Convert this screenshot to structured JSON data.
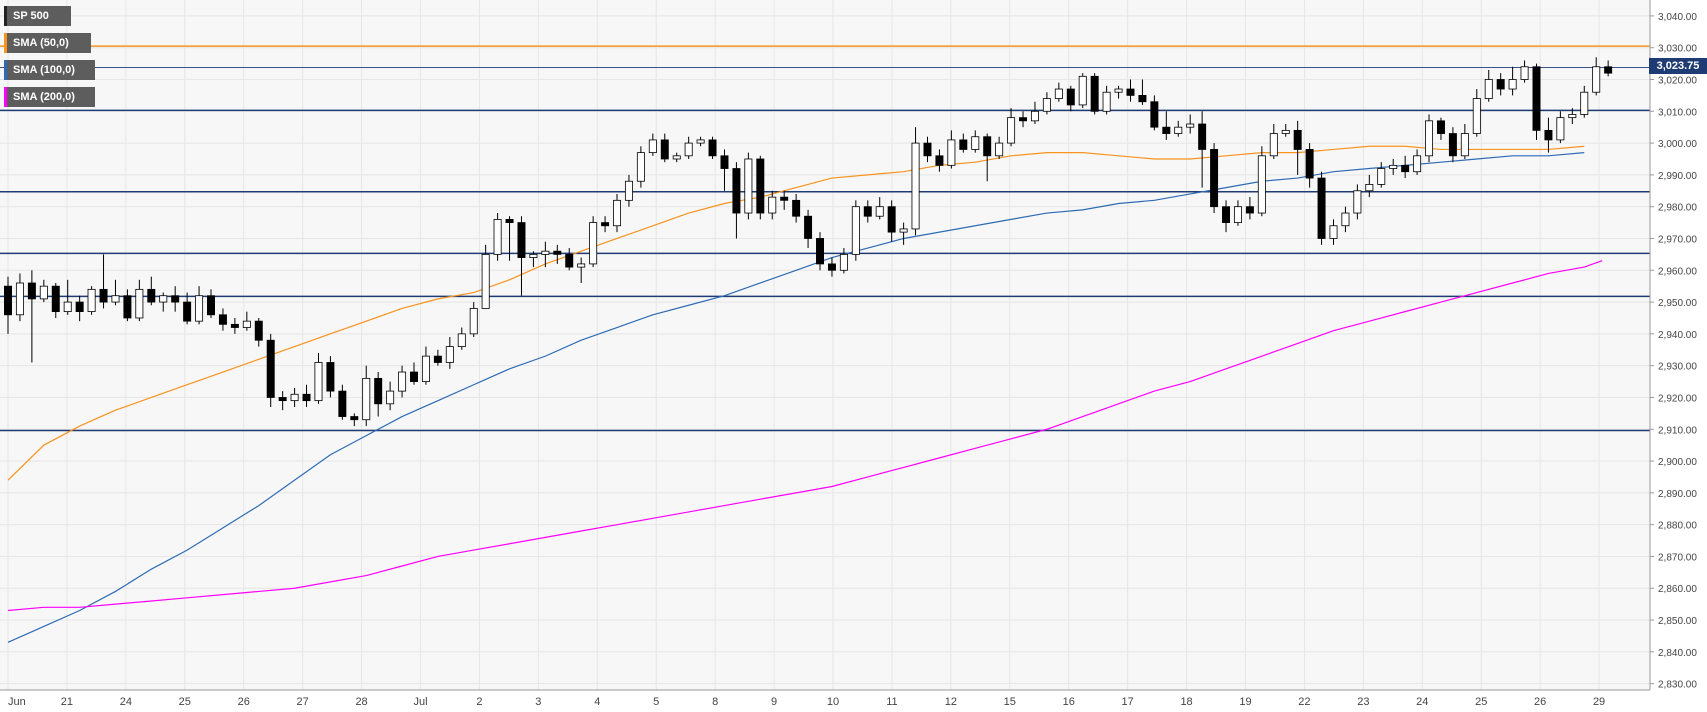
{
  "legend": {
    "symbol": "SP 500",
    "sma50": "SMA (50,0)",
    "sma100": "SMA (100,0)",
    "sma200": "SMA (200,0)"
  },
  "colors": {
    "background": "#f7f7f7",
    "grid": "#e6e6e6",
    "sma50": "#f7931e",
    "sma100": "#2e6bb5",
    "sma200": "#ff00ff",
    "levels": "#1f3b73",
    "orange_level": "#f7931e",
    "candle_up": "#ffffff",
    "candle_down": "#000000"
  },
  "price_label": "3,023.75",
  "chart_data": {
    "type": "line",
    "title": "",
    "xlabel": "",
    "ylabel": "",
    "ylim": [
      2828,
      3045
    ],
    "y_ticks": [
      "3,040.00",
      "3,030.00",
      "3,020.00",
      "3,010.00",
      "3,000.00",
      "2,990.00",
      "2,980.00",
      "2,970.00",
      "2,960.00",
      "2,950.00",
      "2,940.00",
      "2,930.00",
      "2,920.00",
      "2,910.00",
      "2,900.00",
      "2,890.00",
      "2,880.00",
      "2,870.00",
      "2,860.00",
      "2,850.00",
      "2,840.00",
      "2,830.00"
    ],
    "y_tick_values": [
      3040,
      3030,
      3020,
      3010,
      3000,
      2990,
      2980,
      2970,
      2960,
      2950,
      2940,
      2930,
      2920,
      2910,
      2900,
      2890,
      2880,
      2870,
      2860,
      2850,
      2840,
      2830
    ],
    "x_labels": [
      "Jun",
      "21",
      "24",
      "25",
      "26",
      "27",
      "28",
      "Jul",
      "2",
      "3",
      "4",
      "5",
      "8",
      "9",
      "10",
      "11",
      "12",
      "15",
      "16",
      "17",
      "18",
      "19",
      "22",
      "23",
      "24",
      "25",
      "26",
      "29"
    ],
    "last_price": 3023.75,
    "horizontal_levels": [
      {
        "value": 3030.5,
        "color": "orange"
      },
      {
        "value": 3010.3,
        "color": "navy"
      },
      {
        "value": 2984.7,
        "color": "navy"
      },
      {
        "value": 2965.3,
        "color": "navy"
      },
      {
        "value": 2951.8,
        "color": "navy"
      },
      {
        "value": 2909.6,
        "color": "navy"
      }
    ],
    "series": [
      {
        "name": "SMA (50,0)",
        "points": [
          [
            0,
            2894
          ],
          [
            2,
            2905
          ],
          [
            4,
            2911
          ],
          [
            6,
            2916
          ],
          [
            8,
            2920
          ],
          [
            10,
            2924
          ],
          [
            12,
            2928
          ],
          [
            14,
            2932
          ],
          [
            16,
            2936
          ],
          [
            18,
            2940
          ],
          [
            20,
            2944
          ],
          [
            22,
            2948
          ],
          [
            24,
            2951
          ],
          [
            26,
            2953
          ],
          [
            28,
            2957
          ],
          [
            30,
            2962
          ],
          [
            32,
            2966
          ],
          [
            34,
            2970
          ],
          [
            36,
            2974
          ],
          [
            38,
            2978
          ],
          [
            40,
            2981
          ],
          [
            42,
            2983
          ],
          [
            44,
            2986
          ],
          [
            46,
            2989
          ],
          [
            48,
            2990
          ],
          [
            50,
            2991
          ],
          [
            52,
            2993
          ],
          [
            54,
            2994
          ],
          [
            56,
            2996
          ],
          [
            58,
            2997
          ],
          [
            60,
            2997
          ],
          [
            62,
            2996
          ],
          [
            64,
            2995
          ],
          [
            66,
            2995
          ],
          [
            68,
            2996
          ],
          [
            70,
            2997
          ],
          [
            72,
            2997
          ],
          [
            74,
            2998
          ],
          [
            76,
            2999
          ],
          [
            78,
            2999
          ],
          [
            80,
            2998
          ],
          [
            82,
            2998
          ],
          [
            84,
            2998
          ],
          [
            86,
            2998
          ],
          [
            88,
            2999
          ]
        ]
      },
      {
        "name": "SMA (100,0)",
        "points": [
          [
            0,
            2843
          ],
          [
            2,
            2848
          ],
          [
            4,
            2853
          ],
          [
            6,
            2859
          ],
          [
            8,
            2866
          ],
          [
            10,
            2872
          ],
          [
            12,
            2879
          ],
          [
            14,
            2886
          ],
          [
            16,
            2894
          ],
          [
            18,
            2902
          ],
          [
            20,
            2908
          ],
          [
            22,
            2914
          ],
          [
            24,
            2919
          ],
          [
            26,
            2924
          ],
          [
            28,
            2929
          ],
          [
            30,
            2933
          ],
          [
            32,
            2938
          ],
          [
            34,
            2942
          ],
          [
            36,
            2946
          ],
          [
            38,
            2949
          ],
          [
            40,
            2952
          ],
          [
            42,
            2956
          ],
          [
            44,
            2960
          ],
          [
            46,
            2964
          ],
          [
            48,
            2967
          ],
          [
            50,
            2970
          ],
          [
            52,
            2972
          ],
          [
            54,
            2974
          ],
          [
            56,
            2976
          ],
          [
            58,
            2978
          ],
          [
            60,
            2979
          ],
          [
            62,
            2981
          ],
          [
            64,
            2982
          ],
          [
            66,
            2984
          ],
          [
            68,
            2986
          ],
          [
            70,
            2988
          ],
          [
            72,
            2989
          ],
          [
            74,
            2991
          ],
          [
            76,
            2992
          ],
          [
            78,
            2993
          ],
          [
            80,
            2994
          ],
          [
            82,
            2995
          ],
          [
            84,
            2996
          ],
          [
            86,
            2996
          ],
          [
            88,
            2997
          ]
        ]
      },
      {
        "name": "SMA (200,0)",
        "points": [
          [
            0,
            2853
          ],
          [
            2,
            2854
          ],
          [
            4,
            2854
          ],
          [
            6,
            2855
          ],
          [
            8,
            2856
          ],
          [
            10,
            2857
          ],
          [
            12,
            2858
          ],
          [
            14,
            2859
          ],
          [
            16,
            2860
          ],
          [
            18,
            2862
          ],
          [
            20,
            2864
          ],
          [
            22,
            2867
          ],
          [
            24,
            2870
          ],
          [
            26,
            2872
          ],
          [
            28,
            2874
          ],
          [
            30,
            2876
          ],
          [
            32,
            2878
          ],
          [
            34,
            2880
          ],
          [
            36,
            2882
          ],
          [
            38,
            2884
          ],
          [
            40,
            2886
          ],
          [
            42,
            2888
          ],
          [
            44,
            2890
          ],
          [
            46,
            2892
          ],
          [
            48,
            2895
          ],
          [
            50,
            2898
          ],
          [
            52,
            2901
          ],
          [
            54,
            2904
          ],
          [
            56,
            2907
          ],
          [
            58,
            2910
          ],
          [
            60,
            2914
          ],
          [
            62,
            2918
          ],
          [
            64,
            2922
          ],
          [
            66,
            2925
          ],
          [
            68,
            2929
          ],
          [
            70,
            2933
          ],
          [
            72,
            2937
          ],
          [
            74,
            2941
          ],
          [
            76,
            2944
          ],
          [
            78,
            2947
          ],
          [
            80,
            2950
          ],
          [
            82,
            2953
          ],
          [
            84,
            2956
          ],
          [
            86,
            2959
          ],
          [
            88,
            2961
          ],
          [
            89,
            2963
          ]
        ]
      }
    ],
    "candles": [
      [
        2955,
        2946,
        2958,
        2940
      ],
      [
        2946,
        2956,
        2959,
        2944
      ],
      [
        2956,
        2951,
        2960,
        2931
      ],
      [
        2951,
        2955,
        2957,
        2950
      ],
      [
        2955,
        2947,
        2956,
        2945
      ],
      [
        2947,
        2950,
        2957,
        2946
      ],
      [
        2950,
        2947,
        2952,
        2944
      ],
      [
        2947,
        2954,
        2955,
        2946
      ],
      [
        2954,
        2950,
        2965,
        2948
      ],
      [
        2950,
        2952,
        2957,
        2949
      ],
      [
        2952,
        2945,
        2954,
        2944
      ],
      [
        2945,
        2954,
        2957,
        2944
      ],
      [
        2954,
        2950,
        2958,
        2949
      ],
      [
        2950,
        2952,
        2953,
        2947
      ],
      [
        2952,
        2950,
        2955,
        2947
      ],
      [
        2950,
        2944,
        2953,
        2943
      ],
      [
        2944,
        2952,
        2955,
        2943
      ],
      [
        2952,
        2946,
        2954,
        2945
      ],
      [
        2946,
        2943,
        2948,
        2941
      ],
      [
        2943,
        2942,
        2945,
        2940
      ],
      [
        2942,
        2944,
        2947,
        2941
      ],
      [
        2944,
        2938,
        2945,
        2936
      ],
      [
        2938,
        2920,
        2940,
        2917
      ],
      [
        2920,
        2919,
        2922,
        2916
      ],
      [
        2919,
        2921,
        2923,
        2917
      ],
      [
        2921,
        2919,
        2924,
        2917
      ],
      [
        2919,
        2931,
        2934,
        2918
      ],
      [
        2931,
        2922,
        2933,
        2920
      ],
      [
        2922,
        2914,
        2924,
        2913
      ],
      [
        2914,
        2913,
        2915,
        2911
      ],
      [
        2913,
        2926,
        2930,
        2911
      ],
      [
        2926,
        2918,
        2928,
        2914
      ],
      [
        2918,
        2922,
        2925,
        2916
      ],
      [
        2922,
        2928,
        2930,
        2920
      ],
      [
        2928,
        2925,
        2931,
        2924
      ],
      [
        2925,
        2933,
        2936,
        2924
      ],
      [
        2933,
        2931,
        2935,
        2930
      ],
      [
        2931,
        2936,
        2939,
        2929
      ],
      [
        2936,
        2940,
        2942,
        2935
      ],
      [
        2940,
        2948,
        2950,
        2939
      ],
      [
        2948,
        2965,
        2968,
        2960
      ],
      [
        2965,
        2976,
        2978,
        2963
      ],
      [
        2976,
        2975,
        2977,
        2963
      ],
      [
        2975,
        2964,
        2977,
        2952
      ],
      [
        2964,
        2965,
        2966,
        2961
      ],
      [
        2965,
        2966,
        2969,
        2961
      ],
      [
        2966,
        2965,
        2968,
        2962
      ],
      [
        2965,
        2961,
        2967,
        2960
      ],
      [
        2961,
        2962,
        2964,
        2956
      ],
      [
        2962,
        2975,
        2977,
        2961
      ],
      [
        2975,
        2974,
        2977,
        2972
      ],
      [
        2974,
        2982,
        2984,
        2972
      ],
      [
        2982,
        2988,
        2990,
        2980
      ],
      [
        2988,
        2997,
        2999,
        2986
      ],
      [
        2997,
        3001,
        3003,
        2996
      ],
      [
        3001,
        2995,
        3003,
        2994
      ],
      [
        2995,
        2996,
        2997,
        2994
      ],
      [
        2996,
        3000,
        3002,
        2995
      ],
      [
        3000,
        3001,
        3002,
        2999
      ],
      [
        3001,
        2996,
        3002,
        2995
      ],
      [
        2996,
        2992,
        2998,
        2985
      ],
      [
        2992,
        2978,
        2994,
        2970
      ],
      [
        2978,
        2995,
        2997,
        2976
      ],
      [
        2995,
        2978,
        2996,
        2976
      ],
      [
        2978,
        2983,
        2985,
        2976
      ],
      [
        2983,
        2982,
        2985,
        2979
      ],
      [
        2982,
        2977,
        2984,
        2975
      ],
      [
        2977,
        2970,
        2979,
        2967
      ],
      [
        2970,
        2962,
        2972,
        2960
      ],
      [
        2962,
        2960,
        2964,
        2958
      ],
      [
        2960,
        2965,
        2967,
        2959
      ],
      [
        2965,
        2980,
        2982,
        2963
      ],
      [
        2980,
        2977,
        2982,
        2975
      ],
      [
        2977,
        2980,
        2983,
        2976
      ],
      [
        2980,
        2972,
        2982,
        2969
      ],
      [
        2972,
        2973,
        2975,
        2968
      ],
      [
        2973,
        3000,
        3005,
        2971
      ],
      [
        3000,
        2996,
        3002,
        2994
      ],
      [
        2996,
        2993,
        2998,
        2991
      ],
      [
        2993,
        3001,
        3004,
        2992
      ],
      [
        3001,
        2998,
        3003,
        2997
      ],
      [
        2998,
        3002,
        3004,
        2997
      ],
      [
        3002,
        2996,
        3003,
        2988
      ],
      [
        2996,
        3000,
        3002,
        2995
      ],
      [
        3000,
        3008,
        3011,
        2999
      ],
      [
        3008,
        3007,
        3010,
        3005
      ],
      [
        3007,
        3010,
        3013,
        3006
      ],
      [
        3010,
        3014,
        3016,
        3009
      ],
      [
        3014,
        3017,
        3019,
        3013
      ],
      [
        3017,
        3012,
        3018,
        3010
      ],
      [
        3012,
        3021,
        3022,
        3011
      ],
      [
        3021,
        3010,
        3022,
        3009
      ],
      [
        3010,
        3016,
        3018,
        3009
      ],
      [
        3016,
        3017,
        3018,
        3014
      ],
      [
        3017,
        3015,
        3020,
        3013
      ],
      [
        3015,
        3013,
        3020,
        3012
      ],
      [
        3013,
        3005,
        3015,
        3004
      ],
      [
        3005,
        3003,
        3010,
        3001
      ],
      [
        3003,
        3005,
        3007,
        3002
      ],
      [
        3005,
        3006,
        3009,
        3003
      ],
      [
        3006,
        2998,
        3010,
        2986
      ],
      [
        2998,
        2980,
        3000,
        2978
      ],
      [
        2980,
        2975,
        2982,
        2972
      ],
      [
        2975,
        2980,
        2982,
        2974
      ],
      [
        2980,
        2978,
        2983,
        2976
      ],
      [
        2978,
        2996,
        2999,
        2977
      ],
      [
        2996,
        3003,
        3006,
        2995
      ],
      [
        3003,
        3004,
        3006,
        3002
      ],
      [
        3004,
        2998,
        3007,
        2990
      ],
      [
        2998,
        2989,
        3000,
        2986
      ],
      [
        2989,
        2970,
        2991,
        2968
      ],
      [
        2970,
        2974,
        2976,
        2968
      ],
      [
        2974,
        2978,
        2980,
        2972
      ],
      [
        2978,
        2985,
        2987,
        2976
      ],
      [
        2985,
        2987,
        2990,
        2983
      ],
      [
        2987,
        2992,
        2994,
        2986
      ],
      [
        2992,
        2993,
        2995,
        2990
      ],
      [
        2993,
        2991,
        2996,
        2989
      ],
      [
        2991,
        2996,
        2998,
        2990
      ],
      [
        2996,
        3007,
        3009,
        2994
      ],
      [
        3007,
        3003,
        3008,
        3001
      ],
      [
        3003,
        2996,
        3005,
        2994
      ],
      [
        2996,
        3003,
        3006,
        2995
      ],
      [
        3003,
        3014,
        3017,
        3002
      ],
      [
        3014,
        3020,
        3023,
        3013
      ],
      [
        3020,
        3017,
        3022,
        3015
      ],
      [
        3017,
        3020,
        3024,
        3015
      ],
      [
        3020,
        3024,
        3026,
        3019
      ],
      [
        3024,
        3004,
        3025,
        3001
      ],
      [
        3004,
        3001,
        3008,
        2997
      ],
      [
        3001,
        3008,
        3010,
        3000
      ],
      [
        3008,
        3009,
        3011,
        3006
      ],
      [
        3009,
        3016,
        3018,
        3008
      ],
      [
        3016,
        3024,
        3027,
        3015
      ],
      [
        3024,
        3022,
        3026,
        3021
      ]
    ]
  }
}
